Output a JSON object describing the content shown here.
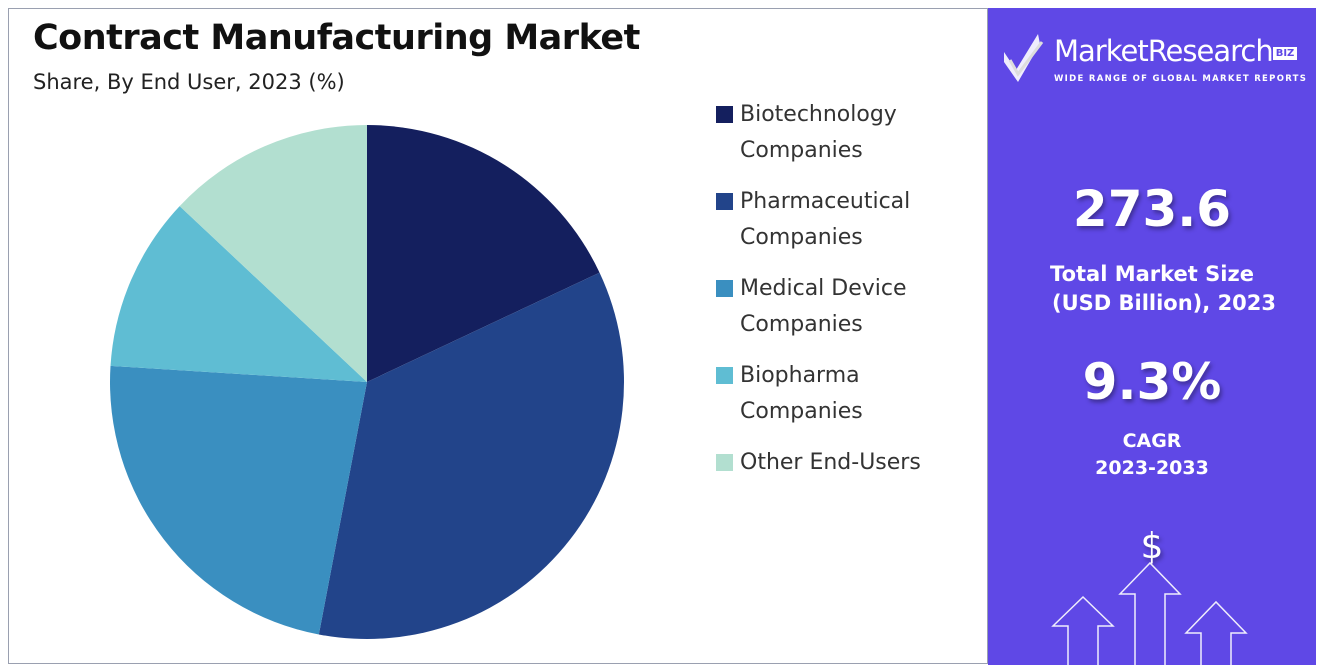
{
  "chart_data": {
    "type": "pie",
    "title": "Contract Manufacturing Market",
    "subtitle": "Share, By End User, 2023 (%)",
    "categories": [
      "Biotechnology Companies",
      "Pharmaceutical Companies",
      "Medical Device Companies",
      "Biopharma Companies",
      "Other End-Users"
    ],
    "legend_lines": [
      [
        "Biotechnology",
        "Companies"
      ],
      [
        "Pharmaceutical",
        "Companies"
      ],
      [
        "Medical Device",
        "Companies"
      ],
      [
        "Biopharma",
        "Companies"
      ],
      [
        "Other End-Users"
      ]
    ],
    "values": [
      18,
      35,
      23,
      11,
      13
    ],
    "colors": [
      "#141f5e",
      "#22448a",
      "#3a8fc0",
      "#5fbdd3",
      "#b2dfd0"
    ],
    "legend_position": "right"
  },
  "panel": {
    "brand": "MarketResearch",
    "brand_badge": "BIZ",
    "tagline": "WIDE RANGE OF GLOBAL MARKET REPORTS",
    "market_size": "273.6",
    "market_size_label_1": "Total Market Size",
    "market_size_label_2": "(USD Billion), 2023",
    "cagr": "9.3%",
    "cagr_label_1": "CAGR",
    "cagr_label_2": "2023-2033",
    "dollar": "$",
    "bg_color": "#5f48e6"
  }
}
